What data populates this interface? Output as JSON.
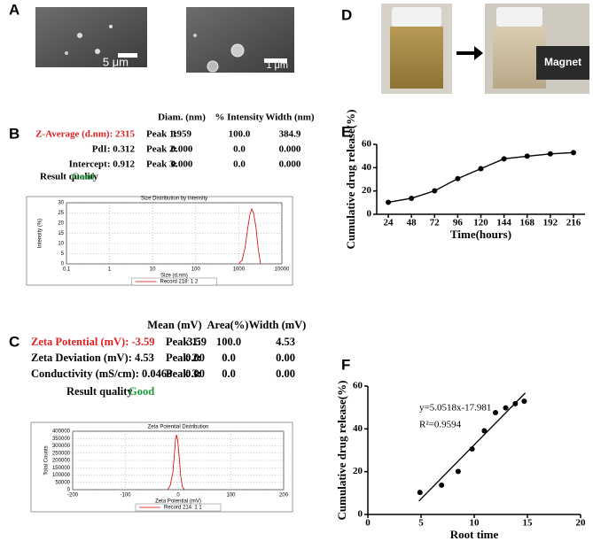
{
  "panel_labels": [
    "A",
    "B",
    "C",
    "D",
    "E",
    "F"
  ],
  "sem_scale_bars": [
    "5 μm",
    "1 μm"
  ],
  "magnet_label": "Magnet",
  "dls_table": {
    "headers": [
      "Diam. (nm)",
      "% Intensity",
      "Width (nm)"
    ],
    "summary": [
      "Z-Average (d.nm): 2315",
      "PdI: 0.312",
      "Intercept: 0.912"
    ],
    "rows": [
      [
        "Peak 1:",
        "1959",
        "100.0",
        "384.9"
      ],
      [
        "Peak 2:",
        "0.000",
        "0.0",
        "0.000"
      ],
      [
        "Peak 3:",
        "0.000",
        "0.0",
        "0.000"
      ]
    ],
    "quality_label": "Result quality",
    "quality": "Good"
  },
  "zeta_table": {
    "headers": [
      "Mean (mV)",
      "Area(%)",
      "Width (mV)"
    ],
    "summary": [
      "Zeta Potential (mV): -3.59",
      "Zeta Deviation (mV): 4.53",
      "Conductivity (mS/cm): 0.0463"
    ],
    "rows": [
      [
        "Peak 1:",
        "-3.59",
        "100.0",
        "4.53"
      ],
      [
        "Peak 2:",
        "0.00",
        "0.0",
        "0.00"
      ],
      [
        "Peak 3:",
        "0.00",
        "0.0",
        "0.00"
      ]
    ],
    "quality_label": "Result quality",
    "quality": "Good"
  },
  "chart_data": [
    {
      "type": "line",
      "title": "Size Distribution by Intensity",
      "x_label": "Size (d.nm)",
      "y_label": "Intensity (%)",
      "log_x": true,
      "grid": true,
      "xlim": [
        0.1,
        10000
      ],
      "xticks": [
        0.1,
        1,
        10,
        100,
        1000,
        10000
      ],
      "ylim": [
        0,
        30
      ],
      "yticks": [
        0,
        5,
        10,
        15,
        20,
        25,
        30
      ],
      "x": [
        1000,
        1200,
        1400,
        1600,
        1800,
        2000,
        2200,
        2500,
        2800,
        3200
      ],
      "series": [
        {
          "name": "Record 218: 1 2",
          "color": "#d40000",
          "values": [
            0,
            2,
            8,
            17,
            24,
            27,
            25,
            18,
            8,
            0
          ]
        }
      ]
    },
    {
      "type": "line",
      "title": "Zeta Potential Distribution",
      "x_label": "Zeta Potential (mV)",
      "y_label": "Total Counts",
      "grid": true,
      "xlim": [
        -200,
        200
      ],
      "xticks": [
        -200,
        -100,
        0,
        100,
        200
      ],
      "ylim": [
        0,
        400000
      ],
      "yticks": [
        0,
        50000,
        100000,
        150000,
        200000,
        250000,
        300000,
        350000,
        400000
      ],
      "x": [
        -20,
        -15,
        -10,
        -7,
        -5,
        -3,
        -1,
        2,
        5,
        8,
        12
      ],
      "series": [
        {
          "name": "Record 214: 1 1",
          "color": "#d40000",
          "values": [
            0,
            30000,
            120000,
            250000,
            340000,
            375000,
            340000,
            220000,
            90000,
            20000,
            0
          ]
        }
      ]
    },
    {
      "type": "line",
      "x_label": "Time(hours)",
      "y_label": "Cumulative drug release(%)",
      "markers": true,
      "xlim": [
        12,
        228
      ],
      "xticks": [
        24,
        48,
        72,
        96,
        120,
        144,
        168,
        192,
        216
      ],
      "ylim": [
        0,
        60
      ],
      "yticks": [
        0,
        20,
        40,
        60
      ],
      "x": [
        24,
        48,
        72,
        96,
        120,
        144,
        168,
        192,
        216
      ],
      "series": [
        {
          "color": "#000000",
          "values": [
            10.3,
            13.7,
            20.1,
            30.6,
            39.1,
            47.6,
            49.8,
            51.8,
            52.9
          ]
        }
      ]
    },
    {
      "type": "scatter",
      "x_label": "Root time",
      "y_label": "Cumulative drug release(%)",
      "xlim": [
        0,
        20
      ],
      "xticks": [
        0,
        5,
        10,
        15,
        20
      ],
      "ylim": [
        0,
        60
      ],
      "yticks": [
        0,
        20,
        40,
        60
      ],
      "x": [
        4.9,
        6.93,
        8.49,
        9.8,
        10.95,
        12,
        12.96,
        13.86,
        14.7
      ],
      "series": [
        {
          "color": "#000000",
          "values": [
            10.3,
            13.7,
            20.1,
            30.6,
            39.1,
            47.6,
            49.8,
            51.8,
            52.9
          ]
        }
      ],
      "annotations": [
        "y=5.0518x-17.981",
        "R²=0.9594"
      ],
      "fit": {
        "slope": 5.0518,
        "intercept": -17.981,
        "x_range": [
          4.8,
          14.8
        ]
      }
    }
  ]
}
